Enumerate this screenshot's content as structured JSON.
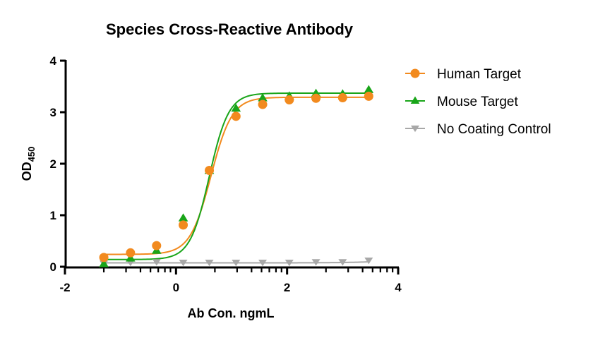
{
  "chart_data": {
    "type": "scatter",
    "title": "Species Cross-Reactive Antibody",
    "xlabel": "Ab Con. ngmL",
    "ylabel_main": "OD",
    "ylabel_sub": "450",
    "xlim": [
      -2,
      4
    ],
    "ylim": [
      0,
      4
    ],
    "x_ticks": [
      -2,
      0,
      2,
      4
    ],
    "x_tick_labels": [
      "-2",
      "0",
      "2",
      "4"
    ],
    "y_ticks": [
      0,
      1,
      2,
      3,
      4
    ],
    "y_tick_labels": [
      "0",
      "1",
      "2",
      "3",
      "4"
    ],
    "grid": false,
    "legend_position": "right",
    "series": [
      {
        "name": "Human Target",
        "color": "#F28A1E",
        "marker": "circle",
        "x": [
          -1.3,
          -0.82,
          -0.35,
          0.13,
          0.6,
          1.08,
          1.56,
          2.04,
          2.52,
          3.0,
          3.47
        ],
        "y": [
          0.18,
          0.27,
          0.41,
          0.81,
          1.87,
          2.92,
          3.15,
          3.24,
          3.27,
          3.28,
          3.31
        ],
        "fit": {
          "bottom": 0.24,
          "top": 3.29,
          "ec50_log": 0.63,
          "hill": 2.3
        }
      },
      {
        "name": "Mouse Target",
        "color": "#19A519",
        "marker": "triangle-up",
        "x": [
          -1.3,
          -0.82,
          -0.35,
          0.13,
          0.6,
          1.08,
          1.56,
          2.04,
          2.52,
          3.0,
          3.47
        ],
        "y": [
          0.05,
          0.16,
          0.31,
          0.94,
          1.86,
          3.07,
          3.27,
          3.31,
          3.36,
          3.35,
          3.43
        ],
        "fit": {
          "bottom": 0.14,
          "top": 3.37,
          "ec50_log": 0.6,
          "hill": 2.5
        }
      },
      {
        "name": "No Coating Control",
        "color": "#A8A8A8",
        "marker": "triangle-down",
        "x": [
          -1.3,
          -0.82,
          -0.35,
          0.13,
          0.6,
          1.08,
          1.56,
          2.04,
          2.52,
          3.0,
          3.47
        ],
        "y": [
          0.06,
          0.08,
          0.09,
          0.08,
          0.08,
          0.08,
          0.08,
          0.08,
          0.09,
          0.09,
          0.12
        ],
        "fit": {
          "bottom": 0.075,
          "top": 0.2,
          "ec50_log": 4.2,
          "hill": 1.0
        }
      }
    ]
  }
}
